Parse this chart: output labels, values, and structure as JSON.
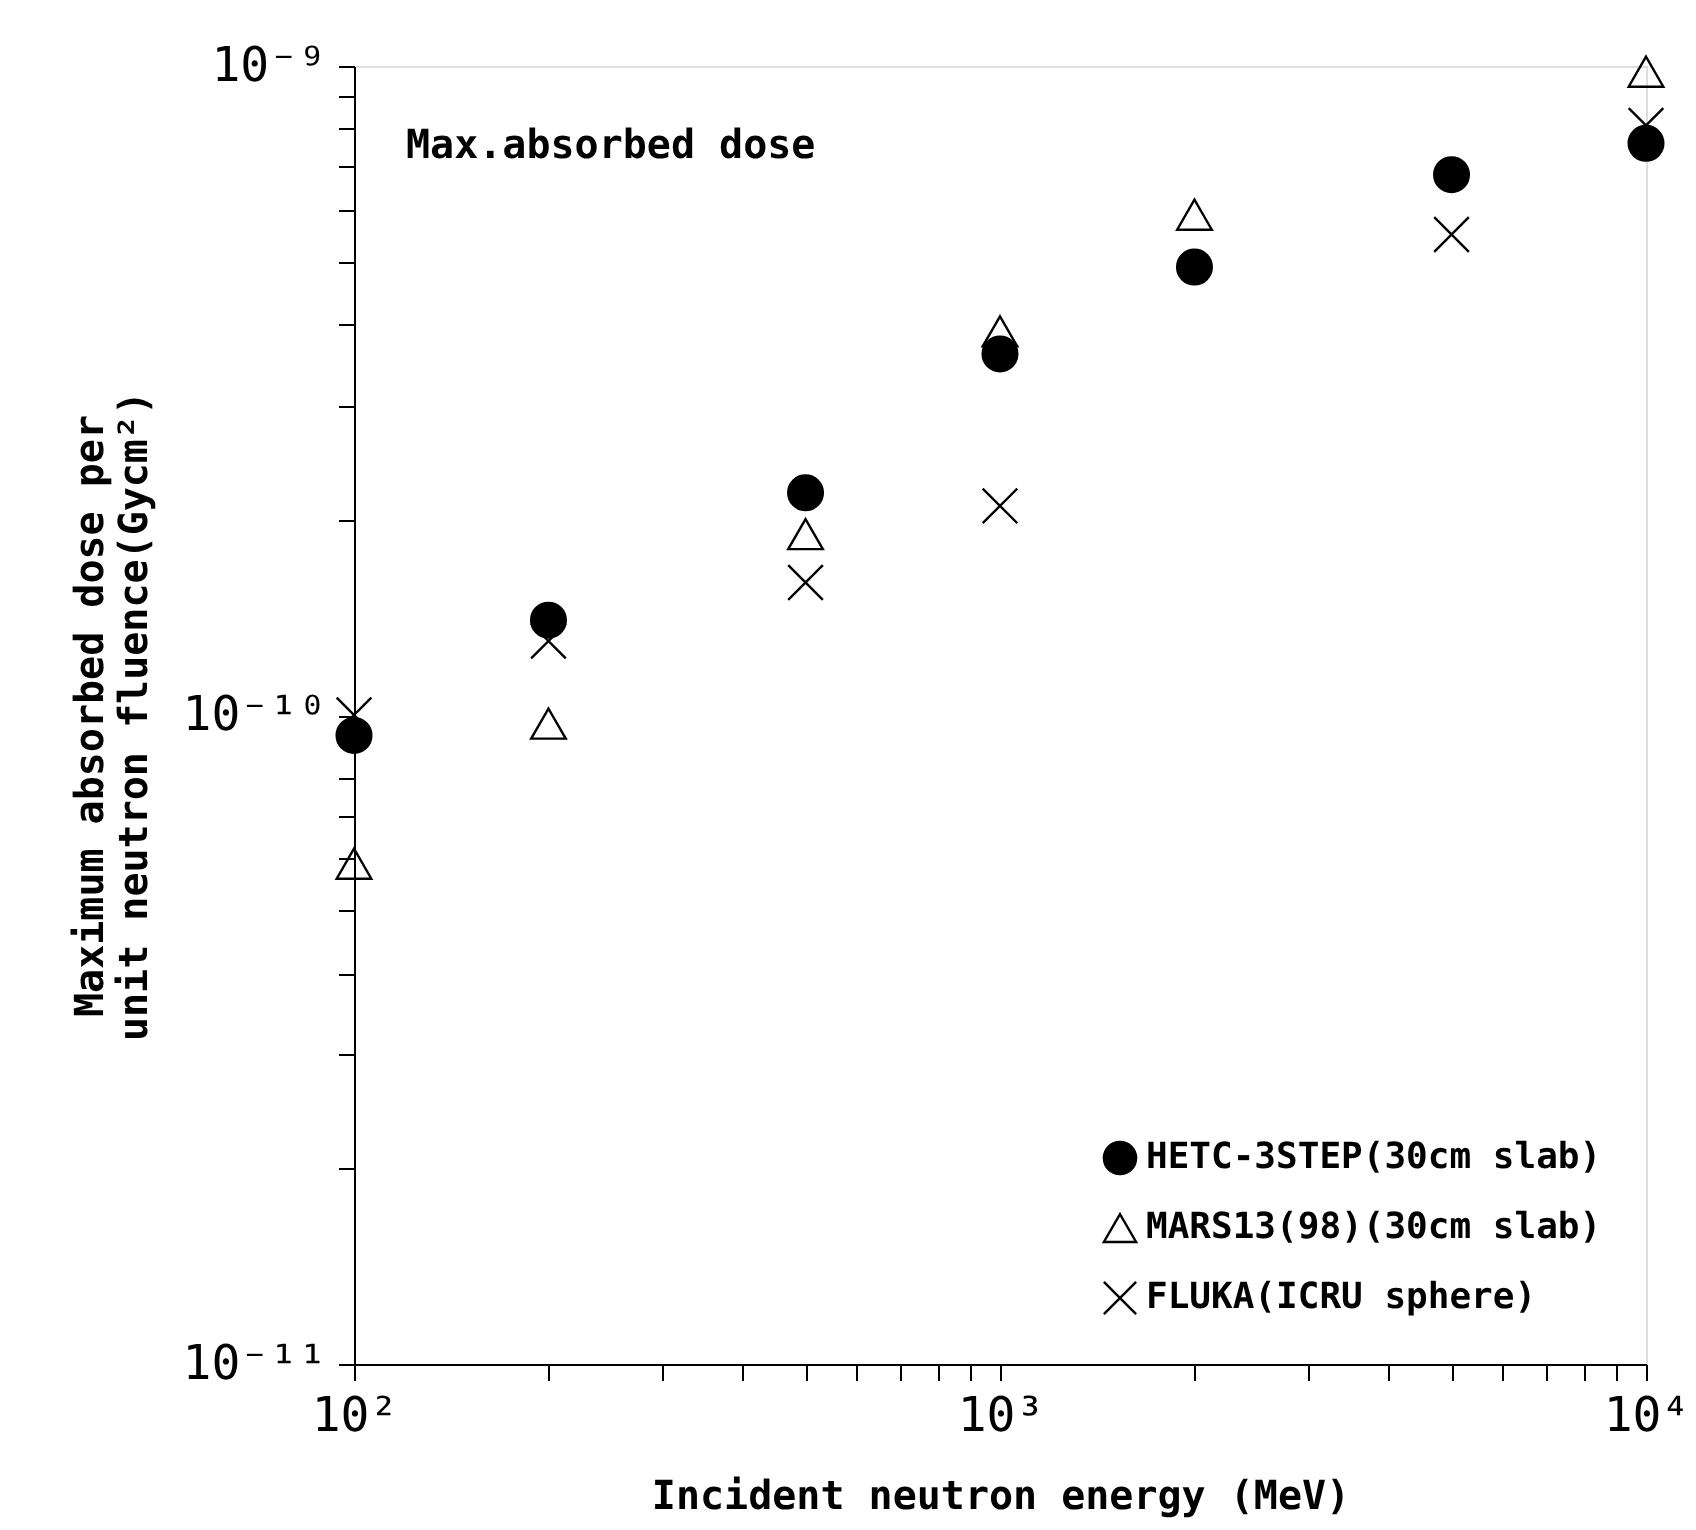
{
  "chart_data": {
    "type": "scatter",
    "xlabel": "Incident neutron energy (MeV)",
    "ylabel": "Maximum absorbed dose per\nunit neutron fluence(Gycm²)",
    "annotations": [
      "Max.absorbed dose"
    ],
    "log": "xy",
    "grid": false,
    "legend": "bottom right",
    "xlim": [
      100,
      10000
    ],
    "ylim": [
      1e-11,
      1e-09
    ],
    "xticks": [
      {
        "value": 100,
        "label": "10²"
      },
      {
        "value": 200,
        "label": null
      },
      {
        "value": 300,
        "label": null
      },
      {
        "value": 400,
        "label": null
      },
      {
        "value": 500,
        "label": null
      },
      {
        "value": 600,
        "label": null
      },
      {
        "value": 700,
        "label": null
      },
      {
        "value": 800,
        "label": null
      },
      {
        "value": 900,
        "label": null
      },
      {
        "value": 1000,
        "label": "10³"
      },
      {
        "value": 2000,
        "label": null
      },
      {
        "value": 3000,
        "label": null
      },
      {
        "value": 4000,
        "label": null
      },
      {
        "value": 5000,
        "label": null
      },
      {
        "value": 6000,
        "label": null
      },
      {
        "value": 7000,
        "label": null
      },
      {
        "value": 8000,
        "label": null
      },
      {
        "value": 9000,
        "label": null
      },
      {
        "value": 10000,
        "label": "10⁴"
      }
    ],
    "yticks": [
      {
        "value": 1e-11,
        "label": "10⁻¹¹"
      },
      {
        "value": 2e-11,
        "label": null
      },
      {
        "value": 3e-11,
        "label": null
      },
      {
        "value": 4e-11,
        "label": null
      },
      {
        "value": 5e-11,
        "label": null
      },
      {
        "value": 6e-11,
        "label": null
      },
      {
        "value": 7e-11,
        "label": null
      },
      {
        "value": 8e-11,
        "label": null
      },
      {
        "value": 9e-11,
        "label": null
      },
      {
        "value": 1e-10,
        "label": "10⁻¹⁰"
      },
      {
        "value": 2e-10,
        "label": null
      },
      {
        "value": 3e-10,
        "label": null
      },
      {
        "value": 4e-10,
        "label": null
      },
      {
        "value": 5e-10,
        "label": null
      },
      {
        "value": 6e-10,
        "label": null
      },
      {
        "value": 7e-10,
        "label": null
      },
      {
        "value": 8e-10,
        "label": null
      },
      {
        "value": 9e-10,
        "label": null
      },
      {
        "value": 1e-09,
        "label": "10⁻⁹"
      }
    ],
    "series": [
      {
        "name": "HETC-3STEP(30cm slab)",
        "color": "#000000",
        "marker": "circle",
        "x": [
          100,
          200,
          500,
          1000,
          2000,
          5000,
          10000
        ],
        "values": [
          9.3e-11,
          1.4e-10,
          2.2e-10,
          3.6e-10,
          4.9e-10,
          6.8e-10,
          7.6e-10
        ]
      },
      {
        "name": "MARS13(98)(30cm slab)",
        "color": "#000000",
        "marker": "triangle",
        "x": [
          100,
          200,
          500,
          1000,
          2000,
          10000
        ],
        "values": [
          5.9e-11,
          9.7e-11,
          1.9e-10,
          3.9e-10,
          5.9e-10,
          9.8e-10
        ]
      },
      {
        "name": "FLUKA(ICRU sphere)",
        "color": "#000000",
        "marker": "cross",
        "x": [
          100,
          200,
          500,
          1000,
          5000,
          10000
        ],
        "values": [
          1e-10,
          1.3e-10,
          1.6e-10,
          2.1e-10,
          5.5e-10,
          8.1e-10
        ]
      }
    ]
  }
}
